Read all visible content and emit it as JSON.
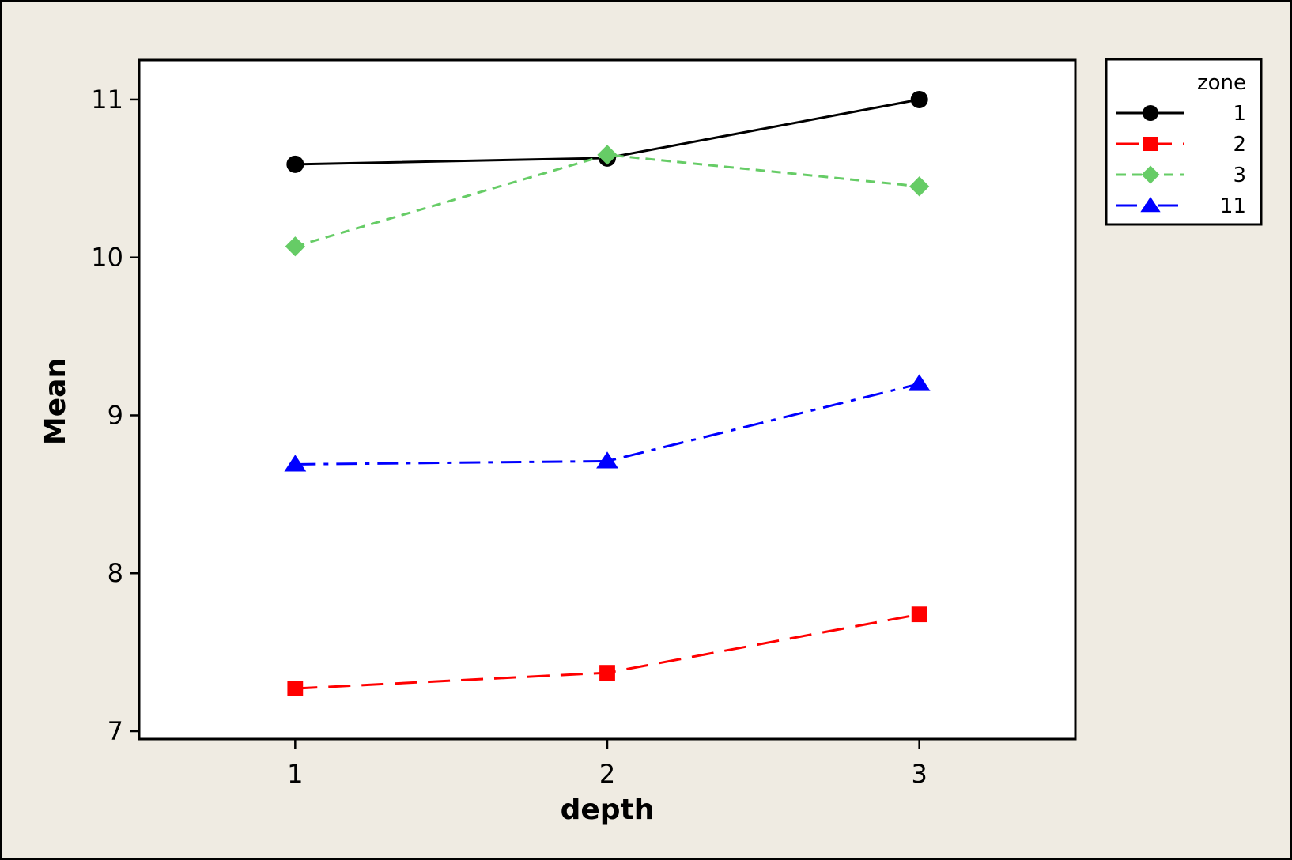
{
  "chart_data": {
    "type": "line",
    "xlabel": "depth",
    "ylabel": "Mean",
    "categories": [
      "1",
      "2",
      "3"
    ],
    "x": [
      1,
      2,
      3
    ],
    "xlim": [
      0.5,
      3.5
    ],
    "ylim": [
      6.95,
      11.25
    ],
    "yticks": [
      7,
      8,
      9,
      10,
      11
    ],
    "grid": false,
    "legend": {
      "title": "zone",
      "placement": "right"
    },
    "series": [
      {
        "name": "1",
        "values": [
          10.59,
          10.63,
          11.0
        ],
        "color": "#000000",
        "marker": "circle",
        "dash": "solid"
      },
      {
        "name": "2",
        "values": [
          7.27,
          7.37,
          7.74
        ],
        "color": "#ff0000",
        "marker": "square",
        "dash": "long-dash"
      },
      {
        "name": "3",
        "values": [
          10.07,
          10.65,
          10.45
        ],
        "color": "#66cc66",
        "marker": "diamond",
        "dash": "short-dash"
      },
      {
        "name": "11",
        "values": [
          8.69,
          8.71,
          9.2
        ],
        "color": "#0000ff",
        "marker": "triangle",
        "dash": "dash-dot"
      }
    ]
  }
}
